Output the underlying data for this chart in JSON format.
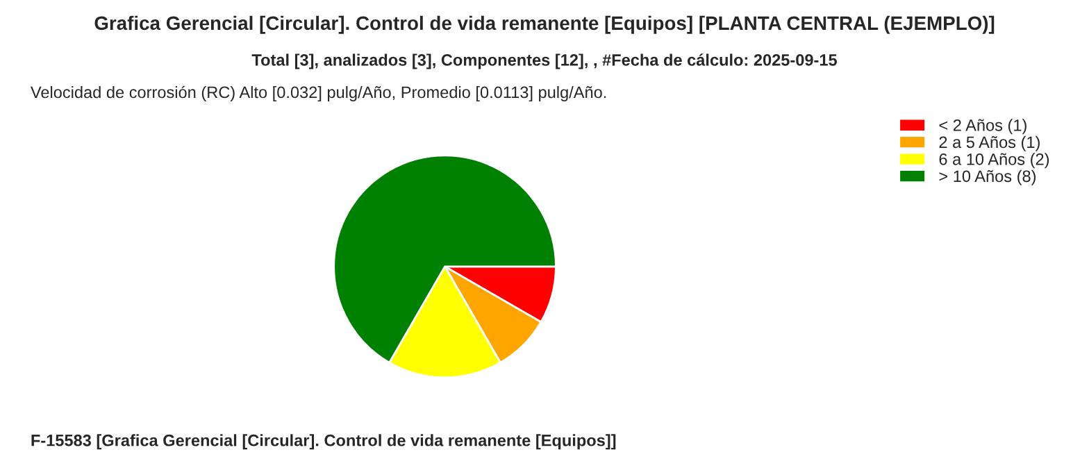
{
  "chart_data": {
    "type": "pie",
    "title": "Grafica Gerencial [Circular]. Control de vida remanente [Equipos] [PLANTA CENTRAL (EJEMPLO)]",
    "subtitle": "Total [3], analizados [3], Componentes [12], , #Fecha de cálculo: 2025-09-15",
    "annotations": [
      "Velocidad de corrosión (RC) Alto [0.032] pulg/Año, Promedio [0.0113] pulg/Año.",
      "F-15583 [Grafica Gerencial [Circular]. Control de vida remanente [Equipos]]"
    ],
    "categories": [
      "< 2 Años (1)",
      "2 a 5 Años (1)",
      "6 a 10 Años (2)",
      "> 10 Años (8)"
    ],
    "values": [
      1,
      1,
      2,
      8
    ],
    "colors": [
      "#ff0000",
      "#ffa500",
      "#ffff00",
      "#008000"
    ],
    "legend": "top right"
  }
}
